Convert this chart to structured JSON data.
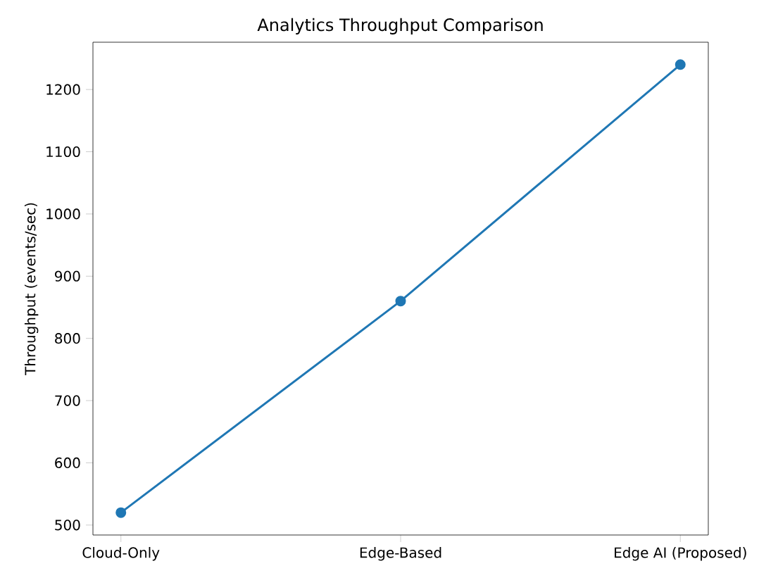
{
  "chart_data": {
    "type": "line",
    "title": "Analytics Throughput Comparison",
    "ylabel": "Throughput (events/sec)",
    "categories": [
      "Cloud-Only",
      "Edge-Based",
      "Edge AI (Proposed)"
    ],
    "series": [
      {
        "color": "#1f77b4",
        "values": [
          520,
          860,
          1240
        ]
      }
    ],
    "ylim": [
      484,
      1276
    ],
    "yticks": [
      500,
      600,
      700,
      800,
      900,
      1000,
      1100,
      1200
    ],
    "marker": "circle",
    "line_style": "solid",
    "grid": false
  }
}
